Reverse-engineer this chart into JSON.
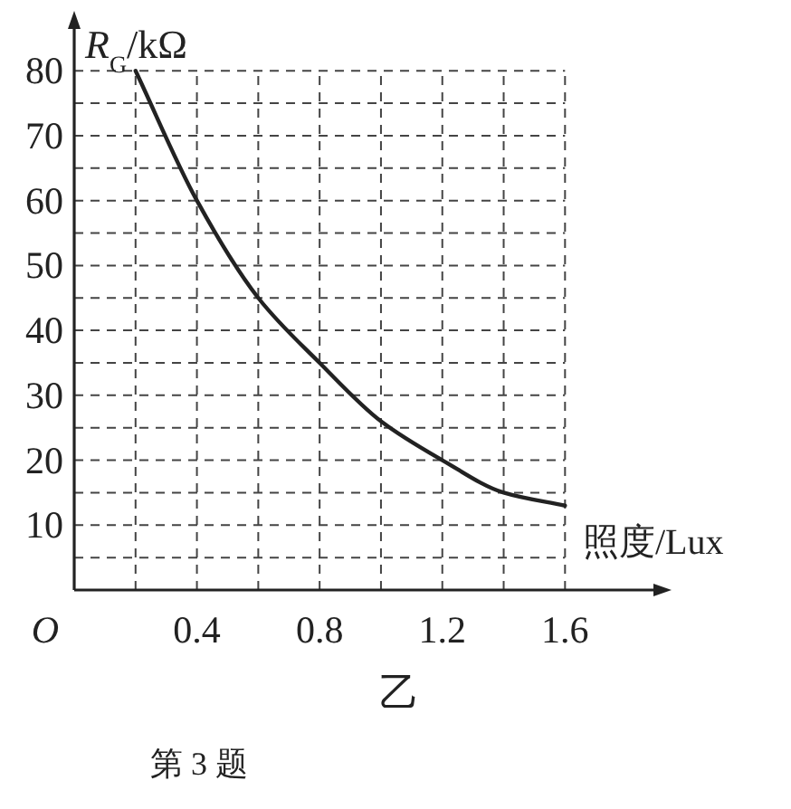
{
  "chart_data": {
    "type": "line",
    "xlabel": "照度/Lux",
    "ylabel": "*R*$_{G}$/kΩ",
    "x": [
      0.2,
      0.4,
      0.6,
      0.8,
      1.0,
      1.2,
      1.4,
      1.6
    ],
    "values": [
      80,
      60,
      45,
      35,
      26,
      20,
      15,
      13
    ],
    "color": "#222222",
    "xlim": [
      0,
      1.9
    ],
    "ylim": [
      0,
      87
    ],
    "xticks": [
      {
        "value": 0.2,
        "label": null
      },
      0.4,
      {
        "value": 0.6,
        "label": null
      },
      0.8,
      {
        "value": 1.0,
        "label": null
      },
      1.2,
      {
        "value": 1.4,
        "label": null
      },
      1.6
    ],
    "yticks": [
      {
        "value": 5,
        "label": null
      },
      10,
      {
        "value": 15,
        "label": null
      },
      20,
      {
        "value": 25,
        "label": null
      },
      30,
      {
        "value": 35,
        "label": null
      },
      40,
      {
        "value": 45,
        "label": null
      },
      50,
      {
        "value": 55,
        "label": null
      },
      60,
      {
        "value": 65,
        "label": null
      },
      70,
      {
        "value": 75,
        "label": null
      },
      80
    ],
    "grid": true,
    "marker": "none",
    "line_style": "solid",
    "annotations": [
      "O",
      "乙",
      "第 3 题"
    ]
  }
}
